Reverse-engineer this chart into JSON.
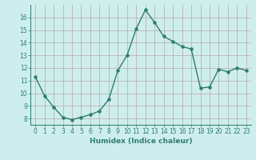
{
  "xlabel": "Humidex (Indice chaleur)",
  "ylabel": "",
  "x": [
    0,
    1,
    2,
    3,
    4,
    5,
    6,
    7,
    8,
    9,
    10,
    11,
    12,
    13,
    14,
    15,
    16,
    17,
    18,
    19,
    20,
    21,
    22,
    23
  ],
  "y": [
    11.3,
    9.8,
    8.9,
    8.1,
    7.9,
    8.1,
    8.3,
    8.6,
    9.5,
    11.8,
    13.0,
    15.1,
    16.6,
    15.6,
    14.5,
    14.1,
    13.7,
    13.5,
    10.4,
    10.5,
    11.9,
    11.7,
    12.0,
    11.8
  ],
  "line_color": "#2e7d6e",
  "marker": "o",
  "marker_size": 2.2,
  "line_width": 1.0,
  "bg_color": "#ceeeed",
  "grid_color": "#b8a8a8",
  "tick_color": "#2e7d6e",
  "label_color": "#2e7d6e",
  "xlim": [
    -0.5,
    23.5
  ],
  "ylim": [
    7.5,
    17.0
  ],
  "yticks": [
    8,
    9,
    10,
    11,
    12,
    13,
    14,
    15,
    16
  ],
  "xticks": [
    0,
    1,
    2,
    3,
    4,
    5,
    6,
    7,
    8,
    9,
    10,
    11,
    12,
    13,
    14,
    15,
    16,
    17,
    18,
    19,
    20,
    21,
    22,
    23
  ],
  "axis_label_fontsize": 6.5,
  "tick_fontsize": 5.5
}
